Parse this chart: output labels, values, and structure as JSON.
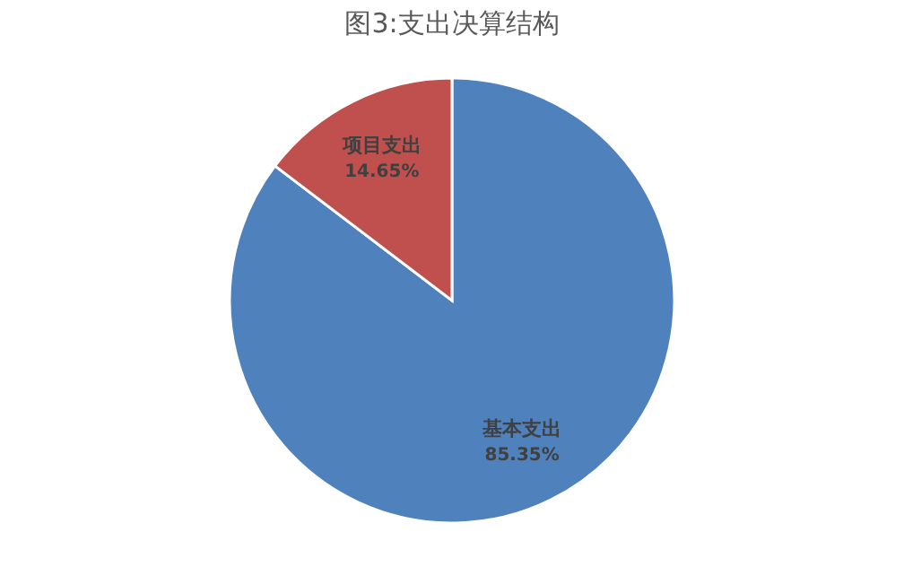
{
  "chart_data": {
    "type": "pie",
    "title": "图3:支出决算结构",
    "categories": [
      "基本支出",
      "项目支出"
    ],
    "values": [
      85.35,
      14.65
    ],
    "colors": [
      "#4f81bd",
      "#c0504d"
    ],
    "value_labels": [
      "85.35%",
      "14.65%"
    ],
    "legend": false
  }
}
